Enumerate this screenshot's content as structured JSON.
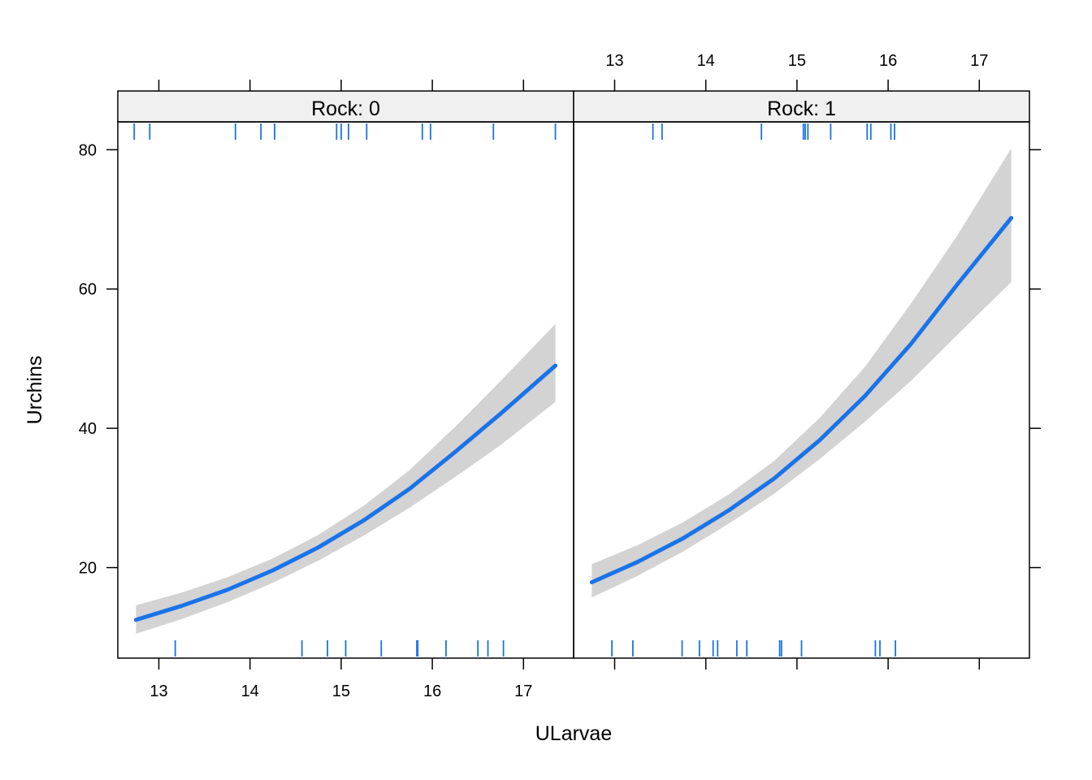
{
  "chart_data": {
    "type": "line",
    "xlabel": "ULarvae",
    "ylabel": "Urchins",
    "xlim": [
      12.55,
      17.55
    ],
    "ylim": [
      7.0,
      84.0
    ],
    "x_ticks": [
      13,
      14,
      15,
      16,
      17
    ],
    "y_ticks": [
      20,
      40,
      60,
      80
    ],
    "colors": {
      "line": "#1a73e8",
      "band": "#d3d3d3",
      "strip": "#f0f0f0",
      "frame": "#000000"
    },
    "panels": [
      {
        "strip_label": "Rock: 0",
        "x": [
          12.75,
          13.25,
          13.75,
          14.25,
          14.75,
          15.25,
          15.75,
          16.25,
          16.75,
          17.35
        ],
        "fit": [
          12.5,
          14.5,
          16.8,
          19.6,
          22.9,
          26.8,
          31.3,
          36.6,
          42.1,
          49.0
        ],
        "lower": [
          10.5,
          12.6,
          15.0,
          17.8,
          21.0,
          24.6,
          28.6,
          33.0,
          37.6,
          43.8
        ],
        "upper": [
          14.6,
          16.4,
          18.6,
          21.3,
          24.7,
          28.9,
          34.0,
          40.2,
          46.8,
          55.0
        ],
        "rug_x": [
          13.18,
          14.57,
          14.85,
          15.05,
          15.44,
          15.83,
          15.84,
          16.15,
          16.5,
          16.61,
          16.78
        ],
        "rug_x_top": [
          12.73,
          12.9,
          13.84,
          14.12,
          14.27,
          14.95,
          15.0,
          15.08,
          15.28,
          15.89,
          15.98,
          16.67,
          17.35
        ]
      },
      {
        "strip_label": "Rock: 1",
        "x": [
          12.75,
          13.25,
          13.75,
          14.25,
          14.75,
          15.25,
          15.75,
          16.25,
          16.75,
          17.35
        ],
        "fit": [
          17.9,
          20.8,
          24.2,
          28.2,
          32.8,
          38.3,
          44.7,
          52.1,
          60.5,
          70.2
        ],
        "lower": [
          15.7,
          18.8,
          22.3,
          26.3,
          30.6,
          35.6,
          41.0,
          46.8,
          53.3,
          61.0
        ],
        "upper": [
          20.5,
          23.2,
          26.5,
          30.5,
          35.3,
          41.5,
          48.9,
          57.9,
          67.5,
          80.2
        ],
        "rug_x": [
          12.97,
          13.2,
          13.74,
          13.93,
          14.08,
          14.13,
          14.34,
          14.45,
          14.81,
          14.83,
          15.05,
          15.86,
          15.91,
          16.08
        ],
        "rug_x_top": [
          13.42,
          13.52,
          14.61,
          15.07,
          15.09,
          15.12,
          15.37,
          15.77,
          15.81,
          16.03,
          16.07
        ]
      }
    ]
  }
}
